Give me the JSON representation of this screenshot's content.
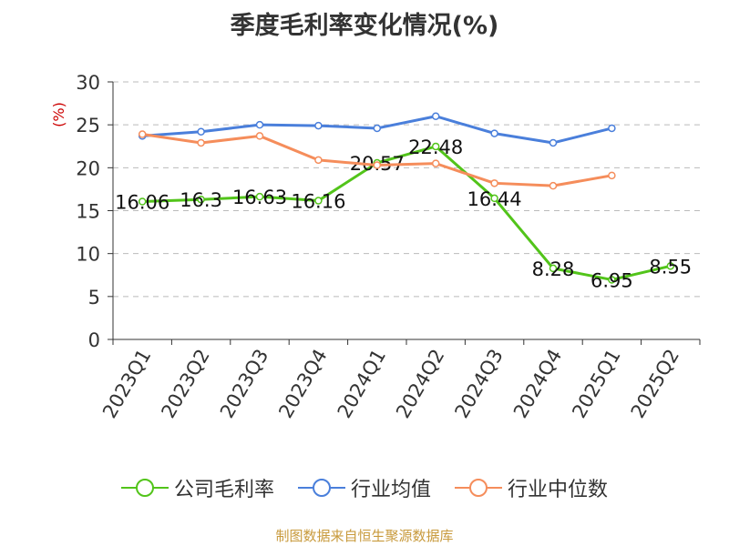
{
  "chart_data": {
    "type": "line",
    "title": "季度毛利率变化情况(%)",
    "ylabel": "(%)",
    "xlabel": "",
    "categories": [
      "2023Q1",
      "2023Q2",
      "2023Q3",
      "2023Q4",
      "2024Q1",
      "2024Q2",
      "2024Q3",
      "2024Q4",
      "2025Q1",
      "2025Q2"
    ],
    "ylim": [
      0,
      30
    ],
    "yticks": [
      0,
      5,
      10,
      15,
      20,
      25,
      30
    ],
    "grid": true,
    "legend_position": "bottom",
    "series": [
      {
        "name": "公司毛利率",
        "color": "#52c41a",
        "show_labels": true,
        "values": [
          16.06,
          16.3,
          16.63,
          16.16,
          20.57,
          22.48,
          16.44,
          8.28,
          6.95,
          8.55
        ]
      },
      {
        "name": "行业均值",
        "color": "#4a7fdb",
        "show_labels": false,
        "values": [
          23.7,
          24.2,
          25.0,
          24.9,
          24.6,
          26.0,
          24.0,
          22.9,
          24.6,
          null
        ]
      },
      {
        "name": "行业中位数",
        "color": "#f58d5b",
        "show_labels": false,
        "values": [
          23.9,
          22.9,
          23.7,
          20.9,
          20.3,
          20.5,
          18.2,
          17.9,
          19.1,
          null
        ]
      }
    ]
  },
  "source": "制图数据来自恒生聚源数据库"
}
